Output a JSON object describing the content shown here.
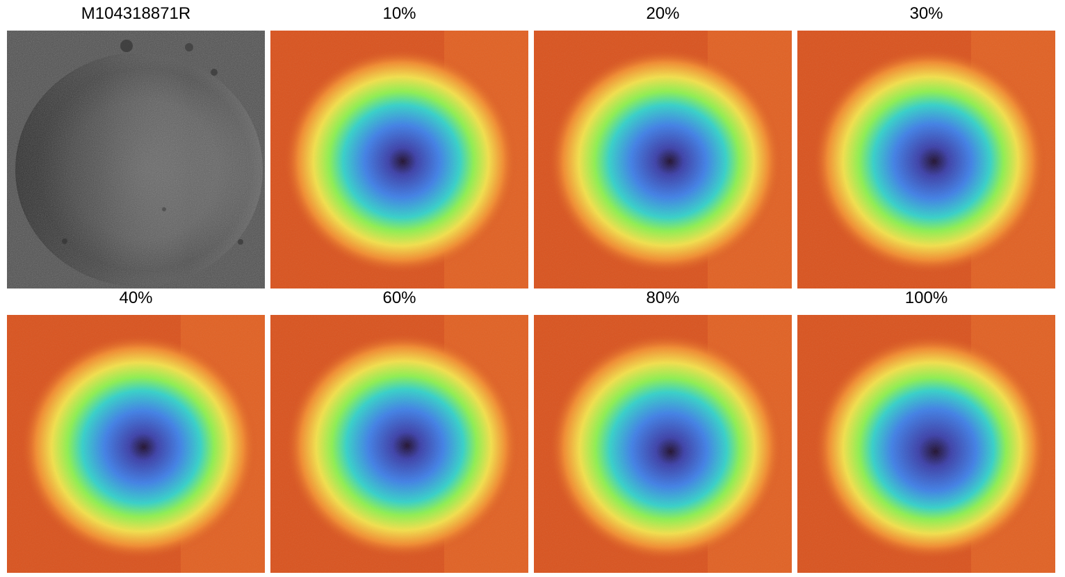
{
  "panels": [
    {
      "title": "M104318871R",
      "kind": "grayscale"
    },
    {
      "title": "10%",
      "kind": "heatmap"
    },
    {
      "title": "20%",
      "kind": "heatmap"
    },
    {
      "title": "30%",
      "kind": "heatmap"
    },
    {
      "title": "40%",
      "kind": "heatmap"
    },
    {
      "title": "60%",
      "kind": "heatmap"
    },
    {
      "title": "80%",
      "kind": "heatmap"
    },
    {
      "title": "100%",
      "kind": "heatmap"
    }
  ],
  "colors": {
    "background": "#ffffff",
    "gray_dark": "#2a2a2a",
    "gray_mid": "#5a5a5a",
    "gray_light": "#7a7a7a",
    "heat_outer": "#d9531e",
    "heat_rim": "#f28a2e",
    "heat_yellow": "#f3e04a",
    "heat_green": "#8ef04f",
    "heat_cyan": "#34d1c9",
    "heat_blue": "#3f7fe6",
    "heat_indigo": "#3b3fa8",
    "heat_core": "#1f0f2e"
  }
}
